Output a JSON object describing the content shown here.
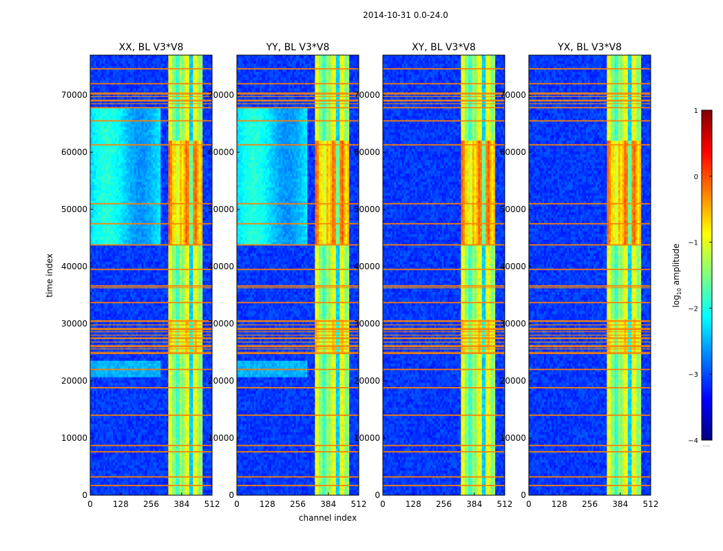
{
  "chart_data": {
    "type": "heatmap",
    "suptitle": "2014-10-31 0.0-24.0",
    "xlabel": "channel index",
    "ylabel": "time index",
    "xlim": [
      0,
      512
    ],
    "ylim": [
      0,
      77000
    ],
    "xticks": [
      0,
      128,
      256,
      384,
      512
    ],
    "yticks": [
      0,
      10000,
      20000,
      30000,
      40000,
      50000,
      60000,
      70000
    ],
    "colorbar": {
      "label": "log10 amplitude",
      "label_base": "log",
      "label_sub": "10",
      "label_rest": " amplitude",
      "range": [
        -4,
        1
      ],
      "ticks": [
        1,
        0,
        -1,
        -2,
        -3,
        -4
      ],
      "tick_labels": [
        "1",
        "0",
        "−1",
        "−2",
        "−3",
        "−4"
      ],
      "colormap": "jet",
      "extra_text": "......"
    },
    "panels": [
      {
        "title": "XX, BL V3*V8",
        "pol": "XX",
        "cross": false
      },
      {
        "title": "YY, BL V3*V8",
        "pol": "YY",
        "cross": false
      },
      {
        "title": "XY, BL V3*V8",
        "pol": "XY",
        "cross": true
      },
      {
        "title": "YX, BL V3*V8",
        "pol": "YX",
        "cross": true
      }
    ],
    "features": {
      "rfi_channel_band": [
        325,
        475
      ],
      "bright_time_band": [
        44000,
        62000
      ],
      "flagged_time_rows": [
        1700,
        3200,
        7600,
        8700,
        14000,
        18800,
        22000,
        24800,
        26000,
        27500,
        29000,
        30500,
        33700,
        36600,
        39500,
        43800,
        47500,
        51000,
        61300,
        65500,
        67800,
        69000,
        70200,
        72000,
        74600
      ],
      "broad_flagged_bands": [
        [
          25000,
          31000
        ],
        [
          68500,
          71000
        ],
        [
          36300,
          36900
        ]
      ]
    }
  }
}
